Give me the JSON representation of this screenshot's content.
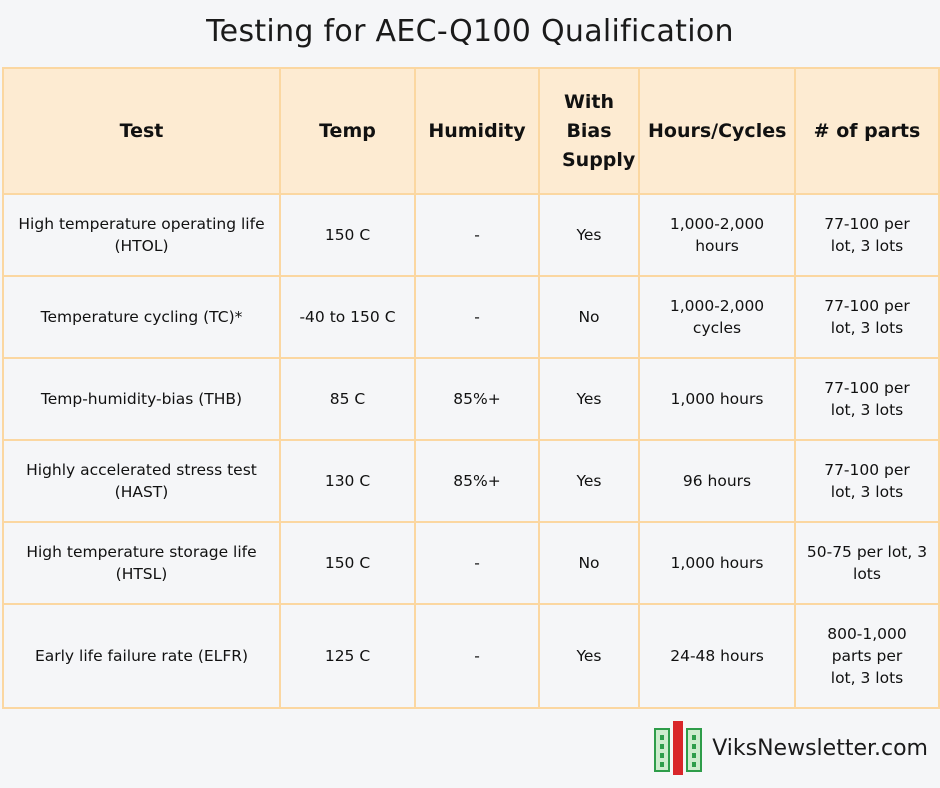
{
  "title": "Testing for AEC-Q100 Qualification",
  "headers": [
    "Test",
    "Temp",
    "Humidity",
    "With Bias Supply",
    "Hours/Cycles",
    "# of parts"
  ],
  "rows": [
    [
      "High temperature operating life (HTOL)",
      "150 C",
      "-",
      "Yes",
      "1,000-2,000 hours",
      "77-100 per lot, 3 lots"
    ],
    [
      "Temperature cycling (TC)*",
      "-40 to 150 C",
      "-",
      "No",
      "1,000-2,000 cycles",
      "77-100 per lot, 3 lots"
    ],
    [
      "Temp-humidity-bias (THB)",
      "85 C",
      "85%+",
      "Yes",
      "1,000 hours",
      "77-100 per lot, 3 lots"
    ],
    [
      "Highly accelerated stress test (HAST)",
      "130 C",
      "85%+",
      "Yes",
      "96 hours",
      "77-100 per lot, 3 lots"
    ],
    [
      "High temperature storage life (HTSL)",
      "150 C",
      "-",
      "No",
      "1,000 hours",
      "50-75 per lot, 3 lots"
    ],
    [
      "Early life failure rate (ELFR)",
      "125 C",
      "-",
      "Yes",
      "24-48 hours",
      "800-1,000 parts per lot, 3 lots"
    ]
  ],
  "footer": {
    "brand": "ViksNewsletter.com",
    "logo_icon": "chip-logo-icon"
  },
  "colors": {
    "header_bg": "#fdebd2",
    "border": "#fbd7a1",
    "page_bg": "#f5f6f8",
    "logo_red": "#d9262b",
    "logo_green": "#2e9d4a"
  }
}
